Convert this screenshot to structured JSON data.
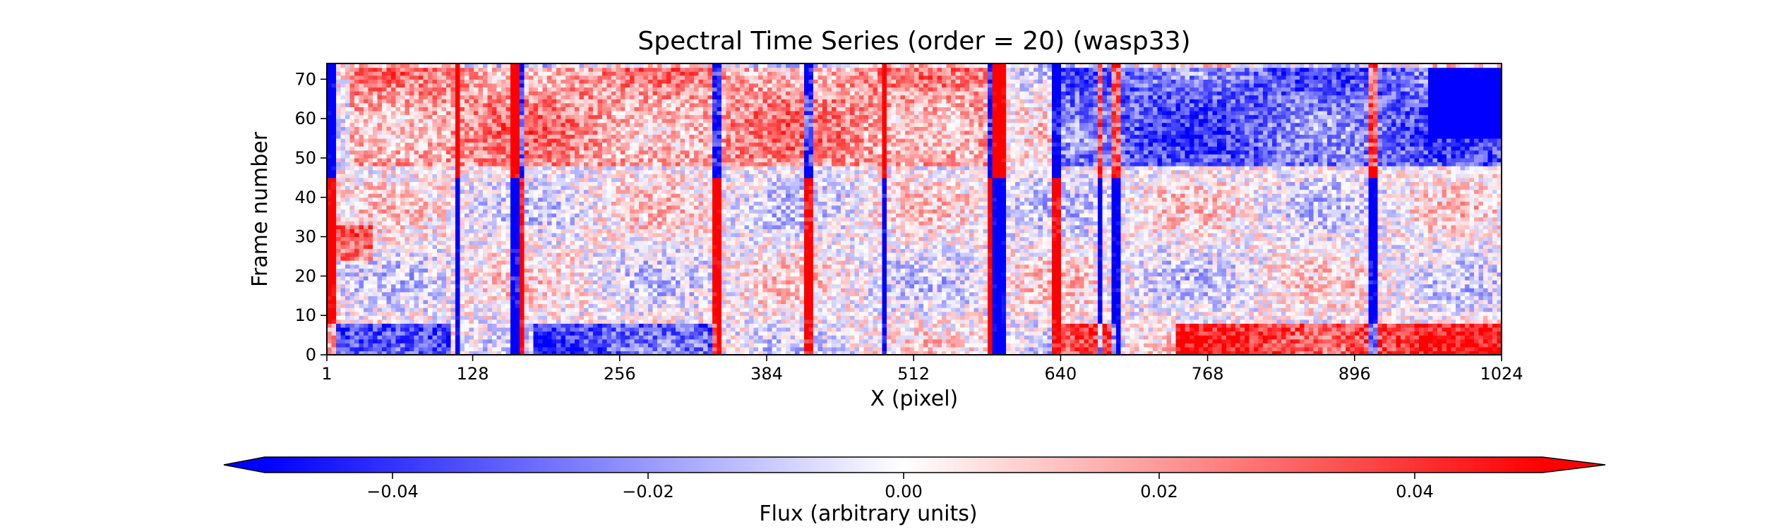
{
  "chart_data": {
    "type": "heatmap",
    "title": "Spectral Time Series (order = 20) (wasp33)",
    "xlabel": "X (pixel)",
    "ylabel": "Frame number",
    "xlim": [
      1,
      1024
    ],
    "ylim": [
      0,
      74
    ],
    "x_ticks": [
      1,
      128,
      256,
      384,
      512,
      640,
      768,
      896,
      1024
    ],
    "y_ticks": [
      0,
      10,
      20,
      30,
      40,
      50,
      60,
      70
    ],
    "n_frames": 74,
    "grid": false,
    "colormap": {
      "name": "bwr",
      "low_color": "#0000ff",
      "mid_color": "#ffffff",
      "high_color": "#ff0000",
      "vmin": -0.05,
      "vmax": 0.05,
      "extend": "both"
    },
    "colorbar": {
      "orientation": "horizontal",
      "label": "Flux (arbitrary units)",
      "ticks": [
        -0.04,
        -0.02,
        0.0,
        0.02,
        0.04
      ],
      "tick_labels": [
        "−0.04",
        "−0.02",
        "0.00",
        "0.02",
        "0.04"
      ]
    },
    "features": {
      "absorption_lines_px": [
        4,
        115,
        165,
        170,
        340,
        420,
        487,
        578,
        585,
        589,
        636,
        675,
        689,
        913
      ],
      "regions": [
        {
          "x": [
            1,
            110
          ],
          "frames": [
            0,
            8
          ],
          "value": -0.04
        },
        {
          "x": [
            180,
            340
          ],
          "frames": [
            0,
            8
          ],
          "value": -0.035
        },
        {
          "x": [
            640,
            690
          ],
          "frames": [
            0,
            8
          ],
          "value": 0.045
        },
        {
          "x": [
            740,
            1024
          ],
          "frames": [
            0,
            8
          ],
          "value": 0.04
        },
        {
          "x": [
            1,
            40
          ],
          "frames": [
            24,
            33
          ],
          "value": 0.03
        },
        {
          "x": [
            20,
            580
          ],
          "frames": [
            48,
            73
          ],
          "value": 0.02
        },
        {
          "x": [
            640,
            1024
          ],
          "frames": [
            48,
            73
          ],
          "value": -0.03
        },
        {
          "x": [
            960,
            1024
          ],
          "frames": [
            55,
            73
          ],
          "value": -0.045
        }
      ]
    }
  }
}
